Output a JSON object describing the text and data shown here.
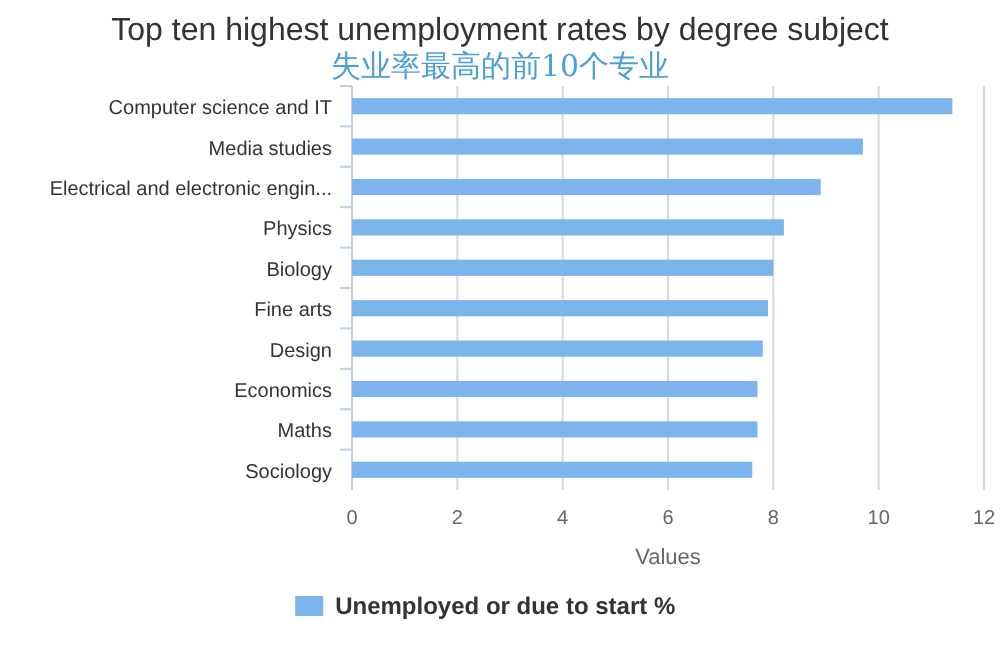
{
  "chart_data": {
    "type": "bar",
    "orientation": "horizontal",
    "title": "Top ten highest unemployment rates by degree subject",
    "subtitle": "失业率最高的前10个专业",
    "categories": [
      "Computer science and IT",
      "Media studies",
      "Electrical and electronic engin...",
      "Physics",
      "Biology",
      "Fine arts",
      "Design",
      "Economics",
      "Maths",
      "Sociology"
    ],
    "series": [
      {
        "name": "Unemployed or due to start %",
        "color": "#7cb5ec",
        "values": [
          11.4,
          9.7,
          8.9,
          8.2,
          8.0,
          7.9,
          7.8,
          7.7,
          7.7,
          7.6
        ]
      }
    ],
    "xlabel": "Values",
    "xlim": [
      0,
      12
    ],
    "xticks": [
      0,
      2,
      4,
      6,
      8,
      10,
      12
    ],
    "grid": "x",
    "legend": "bottom"
  }
}
